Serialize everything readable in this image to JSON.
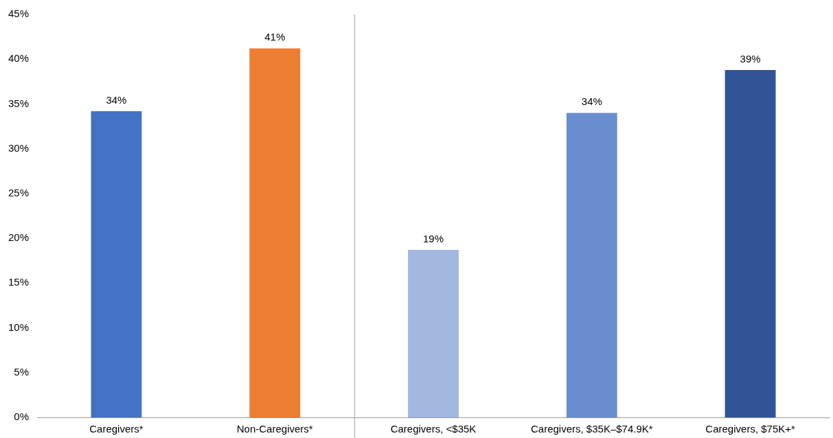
{
  "chart_data": {
    "type": "bar",
    "categories": [
      "Caregivers*",
      "Non-Caregivers*",
      "Caregivers, <$35K",
      "Caregivers, $35K–$74.9K*",
      "Caregivers, $75K+*"
    ],
    "values": [
      34.2,
      41.2,
      18.7,
      34.0,
      38.8
    ],
    "colors": [
      "#4472c4",
      "#ed7d31",
      "#a2b8e0",
      "#698ed0",
      "#2f5597"
    ],
    "value_labels": [
      "34%",
      "41%",
      "19%",
      "34%",
      "39%"
    ],
    "ylim": [
      0,
      45
    ],
    "yticks": [
      {
        "value": 0,
        "label": "0%"
      },
      {
        "value": 5,
        "label": "5%"
      },
      {
        "value": 10,
        "label": "10%"
      },
      {
        "value": 15,
        "label": "15%"
      },
      {
        "value": 20,
        "label": "20%"
      },
      {
        "value": 25,
        "label": "25%"
      },
      {
        "value": 30,
        "label": "30%"
      },
      {
        "value": 35,
        "label": "35%"
      },
      {
        "value": 40,
        "label": "40%"
      },
      {
        "value": 45,
        "label": "45%"
      }
    ],
    "grid": false,
    "legend": false
  }
}
